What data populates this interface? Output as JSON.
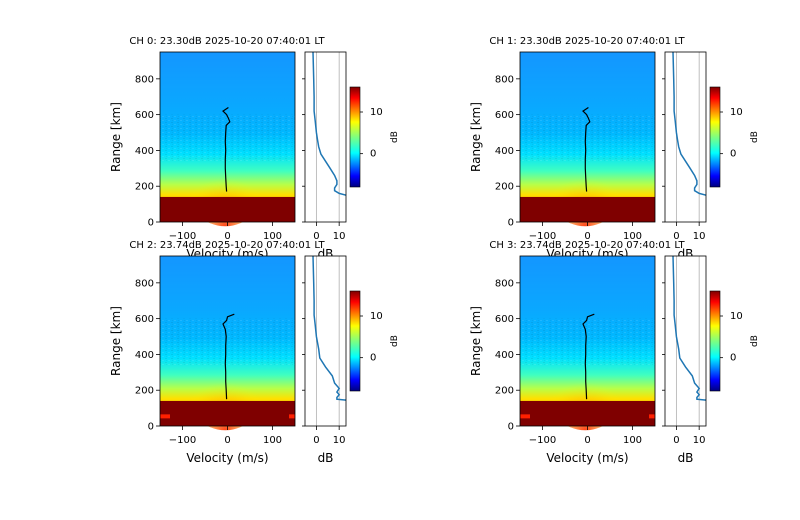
{
  "chart_data": [
    {
      "type": "heatmap",
      "title": "CH 0: 23.30dB 2025-10-20 07:40:01 LT",
      "xlabel": "Velocity (m/s)",
      "ylabel": "Range [km]",
      "xlim": [
        -150,
        150
      ],
      "ylim": [
        0,
        950
      ],
      "xticks": [
        "−100",
        "0",
        "100"
      ],
      "yticks": [
        "0",
        "200",
        "400",
        "600",
        "800"
      ],
      "doppler_line": {
        "range_km": [
          170,
          200,
          250,
          300,
          350,
          400,
          450,
          500,
          540,
          560,
          580,
          600,
          620,
          640
        ],
        "velocity": [
          -2,
          -3,
          -4,
          -5,
          -5,
          -4,
          -5,
          -4,
          -3,
          5,
          2,
          -2,
          -10,
          2
        ]
      },
      "profile": {
        "xlabel": "dB",
        "xticks": [
          "0",
          "10"
        ],
        "xlim": [
          -5,
          13
        ],
        "range_km": [
          150,
          160,
          175,
          190,
          210,
          230,
          260,
          300,
          340,
          380,
          420,
          460,
          500,
          560,
          620,
          700,
          800,
          950
        ],
        "db": [
          13,
          10,
          8,
          8,
          9,
          9,
          8,
          6,
          4,
          2,
          1,
          0.5,
          0,
          -0.5,
          -1,
          -1,
          -1.2,
          -1.5
        ]
      },
      "colorbar": {
        "label": "dB",
        "ticks": [
          "0",
          "10"
        ],
        "range": [
          -8,
          16
        ],
        "colormap": "jet"
      }
    },
    {
      "type": "heatmap",
      "title": "CH 1: 23.30dB 2025-10-20 07:40:01 LT",
      "xlabel": "Velocity (m/s)",
      "ylabel": "Range [km]",
      "xlim": [
        -150,
        150
      ],
      "ylim": [
        0,
        950
      ],
      "xticks": [
        "−100",
        "0",
        "100"
      ],
      "yticks": [
        "0",
        "200",
        "400",
        "600",
        "800"
      ],
      "doppler_line": {
        "range_km": [
          170,
          200,
          250,
          300,
          350,
          400,
          450,
          500,
          540,
          560,
          580,
          600,
          620,
          640
        ],
        "velocity": [
          -2,
          -3,
          -4,
          -5,
          -5,
          -4,
          -5,
          -4,
          -3,
          5,
          2,
          -2,
          -10,
          2
        ]
      },
      "profile": {
        "xlabel": "dB",
        "xticks": [
          "0",
          "10"
        ],
        "xlim": [
          -5,
          13
        ],
        "range_km": [
          150,
          160,
          175,
          190,
          210,
          230,
          260,
          300,
          340,
          380,
          420,
          460,
          500,
          560,
          620,
          700,
          800,
          950
        ],
        "db": [
          13,
          10,
          8,
          8,
          9,
          9,
          8,
          6,
          4,
          2,
          1,
          0.5,
          0,
          -0.5,
          -1,
          -1,
          -1.2,
          -1.5
        ]
      },
      "colorbar": {
        "label": "dB",
        "ticks": [
          "0",
          "10"
        ],
        "range": [
          -8,
          16
        ],
        "colormap": "jet"
      }
    },
    {
      "type": "heatmap",
      "title": "CH 2: 23.74dB 2025-10-20 07:40:01 LT",
      "xlabel": "Velocity (m/s)",
      "ylabel": "Range [km]",
      "xlim": [
        -150,
        150
      ],
      "ylim": [
        0,
        950
      ],
      "xticks": [
        "−100",
        "0",
        "100"
      ],
      "yticks": [
        "0",
        "200",
        "400",
        "600",
        "800"
      ],
      "doppler_line": {
        "range_km": [
          150,
          200,
          250,
          300,
          350,
          400,
          450,
          500,
          540,
          570,
          590,
          610,
          625
        ],
        "velocity": [
          -2,
          -3,
          -4,
          -4,
          -5,
          -4,
          -4,
          -3,
          -5,
          -10,
          -2,
          0,
          15
        ]
      },
      "profile": {
        "xlabel": "dB",
        "xticks": [
          "0",
          "10"
        ],
        "xlim": [
          -5,
          13
        ],
        "range_km": [
          145,
          150,
          160,
          175,
          190,
          210,
          240,
          280,
          330,
          380,
          430,
          500,
          560,
          620,
          700,
          800,
          950
        ],
        "db": [
          13,
          9,
          9,
          10,
          9,
          10,
          8,
          7,
          4,
          1.5,
          1,
          0,
          -0.5,
          -1,
          -1,
          -1.2,
          -1.5
        ]
      },
      "colorbar": {
        "label": "dB",
        "ticks": [
          "0",
          "10"
        ],
        "range": [
          -8,
          16
        ],
        "colormap": "jet"
      }
    },
    {
      "type": "heatmap",
      "title": "CH 3: 23.74dB 2025-10-20 07:40:01 LT",
      "xlabel": "Velocity (m/s)",
      "ylabel": "Range [km]",
      "xlim": [
        -150,
        150
      ],
      "ylim": [
        0,
        950
      ],
      "xticks": [
        "−100",
        "0",
        "100"
      ],
      "yticks": [
        "0",
        "200",
        "400",
        "600",
        "800"
      ],
      "doppler_line": {
        "range_km": [
          150,
          200,
          250,
          300,
          350,
          400,
          450,
          500,
          540,
          570,
          590,
          610,
          625
        ],
        "velocity": [
          -2,
          -3,
          -4,
          -4,
          -5,
          -4,
          -4,
          -3,
          -5,
          -10,
          -2,
          0,
          15
        ]
      },
      "profile": {
        "xlabel": "dB",
        "xticks": [
          "0",
          "10"
        ],
        "xlim": [
          -5,
          13
        ],
        "range_km": [
          145,
          150,
          160,
          175,
          190,
          210,
          240,
          280,
          330,
          380,
          430,
          500,
          560,
          620,
          700,
          800,
          950
        ],
        "db": [
          13,
          9,
          9,
          10,
          9,
          10,
          8,
          7,
          4,
          1.5,
          1,
          0,
          -0.5,
          -1,
          -1,
          -1.2,
          -1.5
        ]
      },
      "colorbar": {
        "label": "dB",
        "ticks": [
          "0",
          "10"
        ],
        "range": [
          -8,
          16
        ],
        "colormap": "jet"
      }
    }
  ]
}
